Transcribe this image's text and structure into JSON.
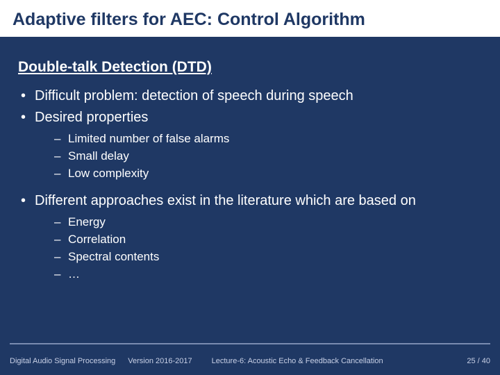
{
  "title": "Adaptive filters for AEC: Control Algorithm",
  "heading": "Double-talk Detection (DTD)",
  "bullets": {
    "b1": "Difficult problem: detection of speech during speech",
    "b2": "Desired properties",
    "b3": "Different approaches exist in the literature which are based on"
  },
  "sub1": {
    "s1": "Limited number of false alarms",
    "s2": "Small delay",
    "s3": "Low complexity"
  },
  "sub2": {
    "s1": "Energy",
    "s2": "Correlation",
    "s3": "Spectral contents",
    "s4": "…"
  },
  "footer": {
    "course": "Digital Audio Signal Processing",
    "version": "Version 2016-2017",
    "lecture": "Lecture-6: Acoustic Echo & Feedback Cancellation",
    "page": "25 / 40"
  },
  "colors": {
    "background": "#1f3864",
    "headerBg": "#ffffff",
    "text": "#ffffff",
    "titleText": "#1f3864",
    "footerText": "#c8d0e6",
    "footerLine": "#7a8bb0"
  }
}
